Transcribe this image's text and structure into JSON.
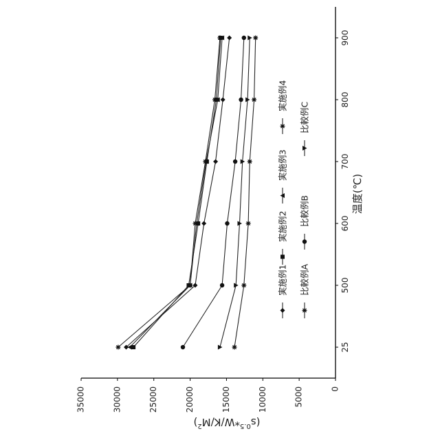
{
  "chart_data": {
    "type": "line",
    "orientation": "rotated-90",
    "title": "",
    "xlabel": "温度(℃)",
    "ylabel": "(s0.5*W/K/M²)",
    "ylabel_parts": {
      "open": "(s",
      "exp": "0.5",
      "mid": "*W/K/M",
      "sq": "2",
      "close": ")"
    },
    "x": [
      "25",
      "500",
      "600",
      "700",
      "800",
      "900"
    ],
    "ylim": [
      0,
      35000
    ],
    "yticks": [
      0,
      5000,
      10000,
      15000,
      20000,
      25000,
      30000,
      35000
    ],
    "grid": false,
    "series": [
      {
        "name": "実施例1",
        "marker": "diamond",
        "values": [
          28800,
          19300,
          18100,
          16500,
          15500,
          14600
        ]
      },
      {
        "name": "実施例2",
        "marker": "square",
        "values": [
          27800,
          20200,
          18900,
          17700,
          16400,
          15800
        ]
      },
      {
        "name": "実施例3",
        "marker": "triangle",
        "values": [
          28300,
          20000,
          19100,
          17800,
          16200,
          15600
        ]
      },
      {
        "name": "実施例4",
        "marker": "star",
        "values": [
          29900,
          20000,
          19300,
          17900,
          16600,
          15900
        ]
      },
      {
        "name": "比較例A",
        "marker": "star",
        "values": [
          13900,
          12600,
          12000,
          11800,
          11200,
          11000
        ]
      },
      {
        "name": "比較例B",
        "marker": "circle",
        "values": [
          21000,
          15600,
          14900,
          13800,
          13000,
          12600
        ]
      },
      {
        "name": "比較例C",
        "marker": "triangle-down",
        "values": [
          15900,
          13700,
          13200,
          12800,
          12100,
          11800
        ]
      }
    ]
  }
}
